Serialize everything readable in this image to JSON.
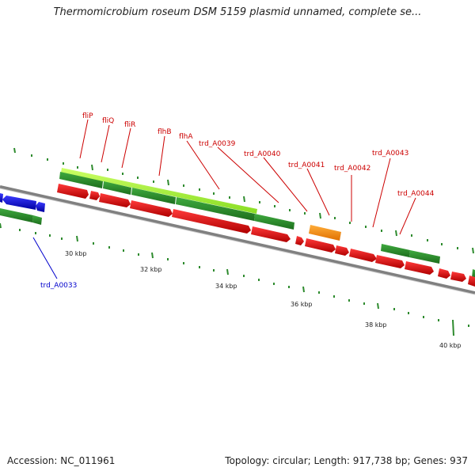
{
  "title": "Thermomicrobium roseum DSM 5159 plasmid unnamed, complete se...",
  "footer": {
    "accession": "Accession: NC_011961",
    "topology": "Topology: circular; Length: 917,738 bp; Genes: 937"
  },
  "colors": {
    "backbone": "#808080",
    "forward_gene": "#2e8b2e",
    "reverse_gene": "#e00000",
    "rna_gene": "#ff8c00",
    "highlight": "#aaff33",
    "minus_gene": "#0000dd",
    "label_red": "#cc0000",
    "label_blue": "#0000cc"
  },
  "scale": {
    "unit": "kbp",
    "labels": [
      "30 kbp",
      "32 kbp",
      "34 kbp",
      "36 kbp",
      "38 kbp",
      "40 kbp"
    ],
    "label_positions_kbp": [
      30,
      32,
      34,
      36,
      38,
      40
    ]
  },
  "genes": {
    "upper_track_labels": [
      {
        "name": "fliP",
        "kbp": 29.6
      },
      {
        "name": "fliQ",
        "kbp": 30.2
      },
      {
        "name": "fliR",
        "kbp": 30.8
      },
      {
        "name": "flhB",
        "kbp": 31.8
      },
      {
        "name": "flhA",
        "kbp": 33.4
      },
      {
        "name": "trd_A0039",
        "kbp": 35.1
      },
      {
        "name": "trd_A0040",
        "kbp": 36.1
      },
      {
        "name": "trd_A0041",
        "kbp": 36.8
      },
      {
        "name": "trd_A0042",
        "kbp": 37.4
      },
      {
        "name": "trd_A0043",
        "kbp": 37.9
      },
      {
        "name": "trd_A0044",
        "kbp": 38.6
      }
    ],
    "lower_track_labels": [
      {
        "name": "trd_A0033",
        "kbp": 28.9
      }
    ]
  }
}
